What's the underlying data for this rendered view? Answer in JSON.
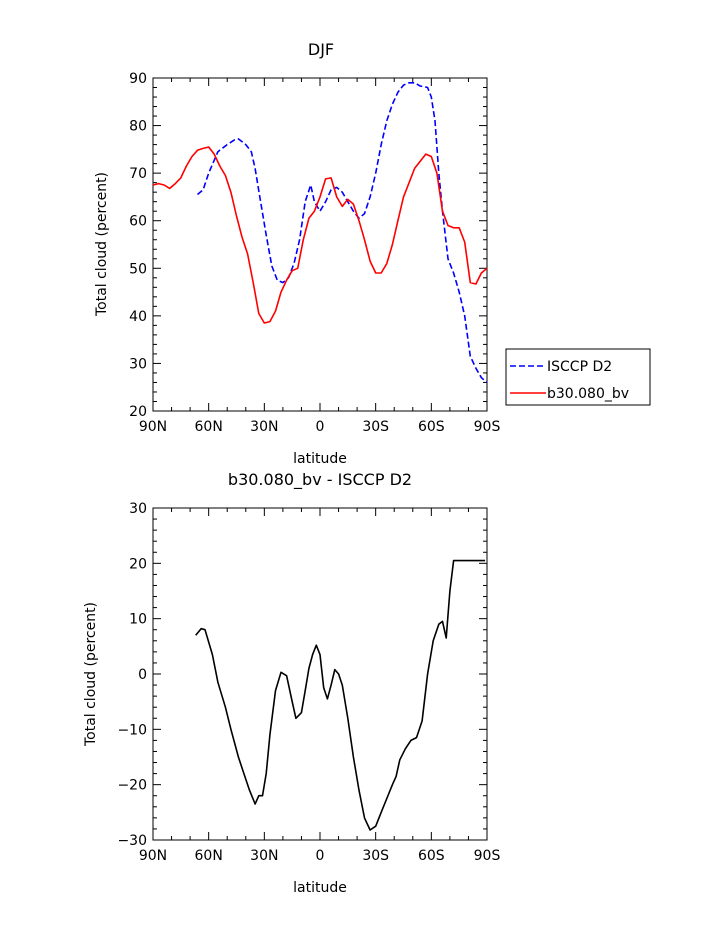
{
  "chart_data": [
    {
      "type": "line",
      "title": "DJF",
      "xlabel": "latitude",
      "ylabel": "Total cloud (percent)",
      "xlim": [
        -90,
        90
      ],
      "ylim": [
        20,
        90
      ],
      "xticks": [
        -90,
        -60,
        -30,
        0,
        30,
        60,
        90
      ],
      "xtick_labels": [
        "90N",
        "60N",
        "30N",
        "0",
        "30S",
        "60S",
        "90S"
      ],
      "yticks": [
        20,
        30,
        40,
        50,
        60,
        70,
        80,
        90
      ],
      "ytick_labels": [
        "20",
        "30",
        "40",
        "50",
        "60",
        "70",
        "80",
        "90"
      ],
      "grid": false,
      "legend_position": "outside-right",
      "series": [
        {
          "name": "ISCCP D2",
          "color": "#0000ff",
          "dash": "dashed",
          "x": [
            -66,
            -63,
            -60,
            -55,
            -50,
            -46,
            -44,
            -40,
            -37,
            -35,
            -32,
            -29,
            -26,
            -23,
            -20,
            -17,
            -14,
            -11,
            -8,
            -5,
            -3,
            0,
            3,
            6,
            9,
            12,
            15,
            18,
            21,
            24,
            27,
            30,
            33,
            36,
            39,
            42,
            45,
            48,
            51,
            54,
            56,
            58,
            60,
            62,
            64,
            66,
            69,
            72,
            75,
            78,
            81,
            84,
            87,
            90
          ],
          "y": [
            65.5,
            66.5,
            70,
            74.5,
            76,
            77,
            77.2,
            76,
            74.5,
            71,
            64,
            57,
            50.5,
            47.5,
            47,
            48,
            51,
            56,
            64,
            67.5,
            64,
            62,
            64,
            66.5,
            67,
            66,
            64,
            62,
            60.5,
            61.5,
            65,
            70,
            76,
            81,
            84.5,
            87,
            88.5,
            89,
            89,
            88.3,
            88.2,
            88,
            86,
            81,
            70,
            62,
            52,
            49,
            45,
            40,
            31.5,
            29,
            27,
            26
          ]
        },
        {
          "name": "b30.080_bv",
          "color": "#ff0000",
          "dash": "solid",
          "x": [
            -90,
            -87,
            -84,
            -81,
            -78,
            -75,
            -72,
            -69,
            -66,
            -63,
            -60,
            -57,
            -54,
            -51,
            -48,
            -45,
            -42,
            -39,
            -36,
            -33,
            -30,
            -27,
            -24,
            -21,
            -18,
            -15,
            -12,
            -9,
            -6,
            -3,
            0,
            3,
            6,
            9,
            12,
            15,
            18,
            21,
            24,
            27,
            30,
            33,
            36,
            39,
            42,
            45,
            48,
            51,
            54,
            57,
            60,
            63,
            66,
            69,
            72,
            75,
            78,
            81,
            84,
            87,
            90
          ],
          "y": [
            67.5,
            67.8,
            67.5,
            66.8,
            67.8,
            69,
            71.5,
            73.5,
            74.8,
            75.2,
            75.5,
            74,
            71.5,
            69.5,
            66,
            61,
            56.5,
            53,
            47,
            40.5,
            38.5,
            38.8,
            41,
            45,
            47.5,
            49.5,
            50,
            56,
            60.5,
            62,
            65,
            68.8,
            69,
            65,
            63,
            64.5,
            63.5,
            60,
            56,
            51.5,
            49,
            49,
            51,
            55,
            60,
            65,
            68,
            71,
            72.5,
            74,
            73.5,
            70,
            62,
            59,
            58.5,
            58.5,
            55.5,
            47,
            46.7,
            49,
            50
          ]
        }
      ]
    },
    {
      "type": "line",
      "title": "b30.080_bv - ISCCP D2",
      "xlabel": "latitude",
      "ylabel": "Total cloud (percent)",
      "xlim": [
        -90,
        90
      ],
      "ylim": [
        -30,
        30
      ],
      "xticks": [
        -90,
        -60,
        -30,
        0,
        30,
        60,
        90
      ],
      "xtick_labels": [
        "90N",
        "60N",
        "30N",
        "0",
        "30S",
        "60S",
        "90S"
      ],
      "yticks": [
        -30,
        -20,
        -10,
        0,
        10,
        20,
        30
      ],
      "ytick_labels": [
        "−30",
        "−20",
        "−10",
        "0",
        "10",
        "20",
        "30"
      ],
      "grid": false,
      "series": [
        {
          "color": "#000000",
          "dash": "solid",
          "x": [
            -67,
            -64,
            -62,
            -58,
            -55,
            -51,
            -48,
            -44,
            -41,
            -38,
            -35,
            -33,
            -31,
            -29,
            -27,
            -24,
            -21,
            -18,
            -15,
            -13,
            -10,
            -8,
            -6,
            -4,
            -2,
            0,
            2,
            4,
            6,
            8,
            10,
            12,
            15,
            18,
            21,
            24,
            27,
            30,
            33,
            36,
            39,
            41,
            43,
            46,
            49,
            52,
            55,
            58,
            61,
            64,
            66,
            68,
            70,
            72,
            75,
            78,
            81,
            84,
            87,
            89
          ],
          "y": [
            7,
            8.2,
            8,
            3.5,
            -1.5,
            -6,
            -10,
            -15,
            -18,
            -21,
            -23.5,
            -22,
            -22,
            -18,
            -11,
            -3,
            0.3,
            -0.3,
            -5,
            -8,
            -7,
            -3,
            1,
            3.5,
            5.2,
            3.5,
            -2.5,
            -4.5,
            -2,
            0.8,
            0,
            -2,
            -8,
            -15,
            -21,
            -26,
            -28.2,
            -27.5,
            -25,
            -22.5,
            -20,
            -18.5,
            -15.5,
            -13.5,
            -12,
            -11.5,
            -8.5,
            0,
            6,
            9,
            9.5,
            6.5,
            15,
            20.5,
            20.5,
            20.5,
            20.5,
            20.5,
            20.5,
            20.5
          ]
        }
      ]
    }
  ],
  "legend": {
    "items": [
      {
        "label": "ISCCP D2",
        "color": "#0000ff",
        "dash": "dashed"
      },
      {
        "label": "b30.080_bv",
        "color": "#ff0000",
        "dash": "solid"
      }
    ]
  }
}
